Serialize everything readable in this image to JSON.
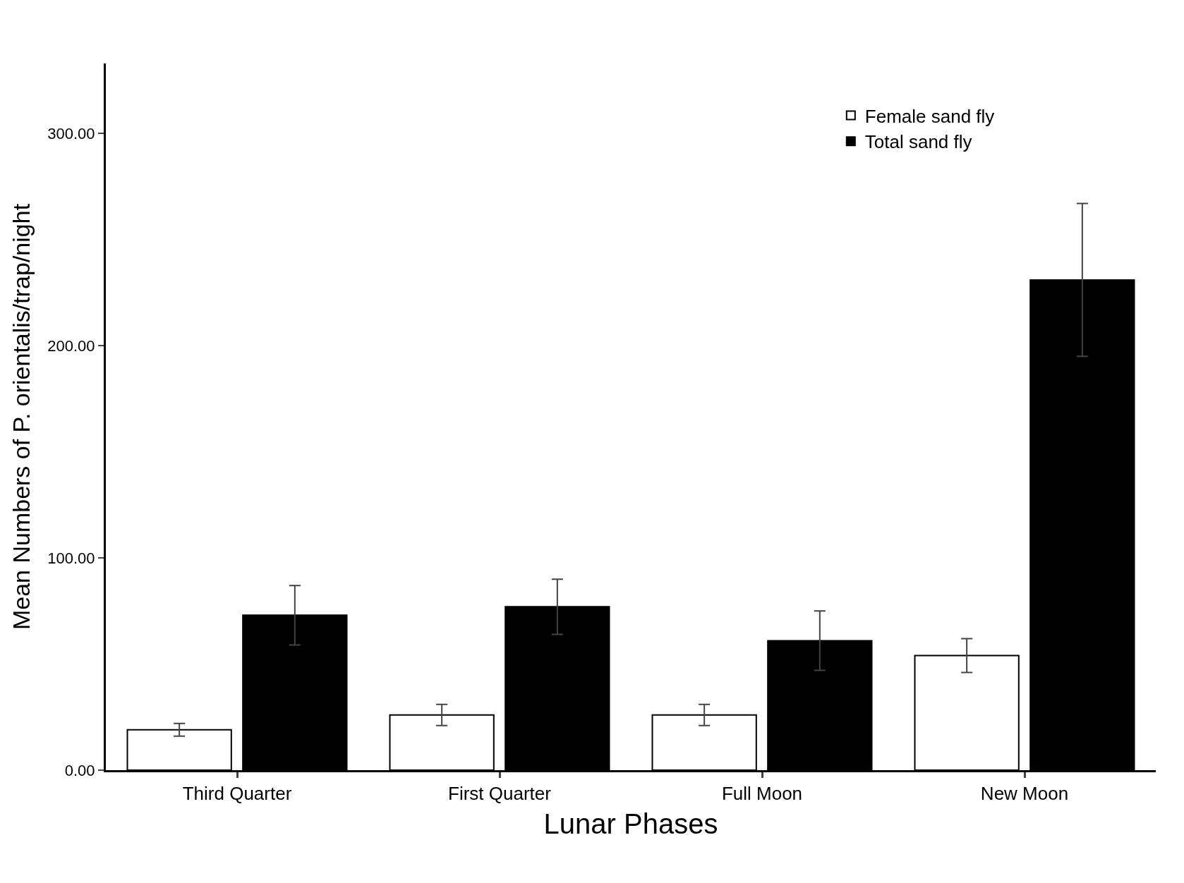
{
  "chart_data": {
    "type": "bar",
    "xlabel": "Lunar Phases",
    "ylabel": "Mean Numbers of P. orientalis/trap/night",
    "categories": [
      "Third Quarter",
      "First Quarter",
      "Full Moon",
      "New Moon"
    ],
    "series": [
      {
        "name": "Female sand fly",
        "color": "#ffffff",
        "values": [
          19,
          26,
          26,
          54
        ],
        "errors": [
          3,
          5,
          5,
          8
        ]
      },
      {
        "name": "Total sand fly",
        "color": "#000000",
        "values": [
          73,
          77,
          61,
          231
        ],
        "errors": [
          14,
          13,
          14,
          36
        ]
      }
    ],
    "ylim": [
      0,
      333
    ],
    "yticks": [
      {
        "value": 0,
        "label": "0.00"
      },
      {
        "value": 100,
        "label": "100.00"
      },
      {
        "value": 200,
        "label": "200.00"
      },
      {
        "value": 300,
        "label": "300.00"
      }
    ],
    "legend": "top right"
  }
}
